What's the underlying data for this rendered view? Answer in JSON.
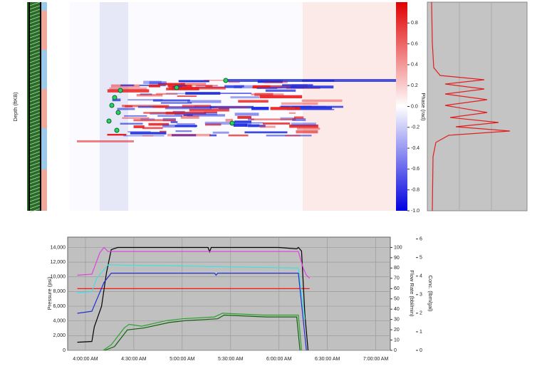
{
  "chart_data": [
    {
      "type": "heatmap",
      "ylabel": "Depth (ftKB)",
      "zlabel": "Phase (rad)",
      "zlim": [
        -1,
        1
      ],
      "zticks": [
        0.8,
        0.6,
        0.4,
        0.2,
        {
          "value": 0,
          "label": "0.0"
        },
        -0.2,
        -0.4,
        -0.6,
        -0.8,
        {
          "value": -1,
          "label": "-1.0"
        }
      ]
    },
    {
      "type": "line",
      "xlim": [
        229,
        429
      ],
      "xticks": [
        {
          "value": 240,
          "label": "4:00:00 AM"
        },
        {
          "value": 270,
          "label": "4:30:00 AM"
        },
        {
          "value": 300,
          "label": "5:00:00 AM"
        },
        {
          "value": 330,
          "label": "5:30:00 AM"
        },
        {
          "value": 360,
          "label": "6:00:00 AM"
        },
        {
          "value": 390,
          "label": "6:30:00 AM"
        },
        {
          "value": 420,
          "label": "7:00:00 AM"
        }
      ],
      "ylabel": "Pressure (psi)",
      "ylim": [
        0,
        15400
      ],
      "yticks": [
        0,
        {
          "value": 2000,
          "label": "2,000"
        },
        {
          "value": 4000,
          "label": "4,000"
        },
        {
          "value": 6000,
          "label": "6,000"
        },
        {
          "value": 8000,
          "label": "8,000"
        },
        {
          "value": 10000,
          "label": "10,000"
        },
        {
          "value": 12000,
          "label": "12,000"
        },
        {
          "value": 14000,
          "label": "14,000"
        }
      ],
      "y2label": "Flow Rate (bbl/min)",
      "y2lim": [
        0,
        110
      ],
      "y2ticks": [
        0,
        10,
        20,
        30,
        40,
        50,
        60,
        70,
        80,
        90,
        100
      ],
      "y3label": "Conc. (lbm/gal)",
      "y3lim": [
        0,
        6.1
      ],
      "y3ticks": [
        0,
        1,
        2,
        3,
        4,
        5,
        6
      ],
      "grid": true,
      "series": [
        {
          "color": "#ff0000",
          "x": [
            235,
            379
          ],
          "values": [
            8400,
            8400
          ]
        },
        {
          "color": "#000000",
          "x": [
            235,
            244,
            245.5,
            250,
            253,
            256,
            260,
            300,
            316,
            317,
            318,
            360,
            371,
            372,
            374,
            376,
            378
          ],
          "values": [
            1100,
            1200,
            3200,
            6000,
            10500,
            13700,
            14000,
            14000,
            14000,
            13400,
            14000,
            14000,
            13800,
            14000,
            13500,
            5000,
            0
          ]
        },
        {
          "color": "#e040e0",
          "axis": "y2",
          "x": [
            235,
            244,
            249,
            251.5,
            254,
            300,
            372,
            375,
            377,
            379
          ],
          "values": [
            73,
            74,
            95,
            100,
            96,
            96,
            96,
            80,
            73,
            70
          ]
        },
        {
          "color": "#40e0e0",
          "axis": "y2",
          "x": [
            235,
            244,
            247,
            254,
            300,
            372,
            376
          ],
          "values": [
            56,
            57,
            70,
            83,
            82,
            80,
            30
          ]
        },
        {
          "color": "#2030d0",
          "axis": "y2",
          "x": [
            235,
            244,
            251.5,
            256,
            300,
            320,
            321,
            322,
            372,
            375,
            377
          ],
          "values": [
            36,
            38,
            66,
            75,
            75,
            75,
            73,
            75,
            75,
            30,
            0
          ]
        },
        {
          "color": "#30a030",
          "axis": "y3",
          "x": [
            251,
            256,
            264,
            267,
            275,
            290,
            300,
            320,
            325,
            350,
            372,
            374
          ],
          "values": [
            0,
            0.3,
            1.2,
            1.4,
            1.3,
            1.6,
            1.7,
            1.8,
            2.0,
            1.9,
            1.9,
            0
          ]
        },
        {
          "color": "#106010",
          "axis": "y3",
          "x": [
            252,
            258,
            266,
            276,
            292,
            302,
            322,
            326,
            352,
            371,
            373
          ],
          "values": [
            0,
            0.2,
            1.1,
            1.2,
            1.5,
            1.6,
            1.7,
            1.9,
            1.8,
            1.8,
            0
          ]
        }
      ]
    }
  ]
}
